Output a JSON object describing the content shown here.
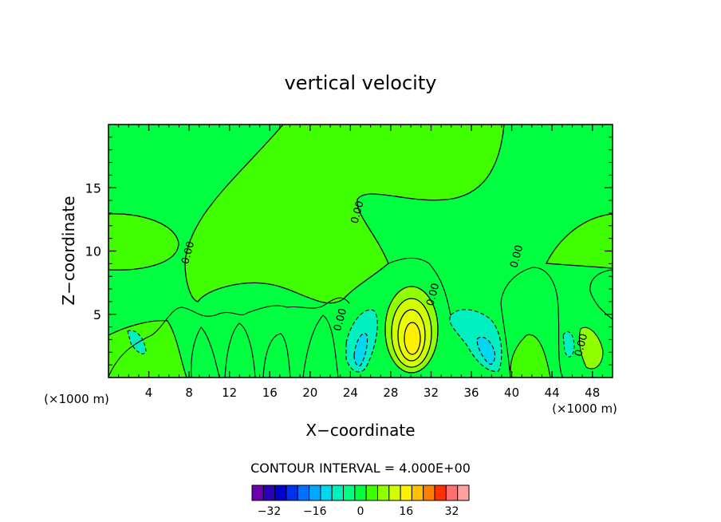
{
  "chart_data": {
    "type": "heatmap",
    "title": "vertical velocity",
    "xlabel": "X−coordinate",
    "ylabel": "Z−coordinate",
    "x_unit_left": "(×1000 m)",
    "x_unit_right": "(×1000 m)",
    "xlim": [
      0,
      50
    ],
    "ylim": [
      0,
      20
    ],
    "xticks": [
      4,
      8,
      12,
      16,
      20,
      24,
      28,
      32,
      36,
      40,
      44,
      48
    ],
    "yticks": [
      5,
      10,
      15
    ],
    "contour_interval_text": "CONTOUR INTERVAL = 4.000E+00",
    "contour_labels": [
      {
        "text": "0.00",
        "x": 8.2,
        "z": 9.8
      },
      {
        "text": "0.00",
        "x": 25.0,
        "z": 13.0
      },
      {
        "text": "0.00",
        "x": 32.5,
        "z": 6.5
      },
      {
        "text": "0.00",
        "x": 40.8,
        "z": 9.5
      },
      {
        "text": "0.00",
        "x": 23.3,
        "z": 4.5
      },
      {
        "text": "0.00",
        "x": 47.2,
        "z": 2.5
      }
    ],
    "colorbar": {
      "levels": [
        -36,
        -32,
        -28,
        -24,
        -20,
        -16,
        -12,
        -8,
        -4,
        0,
        4,
        8,
        12,
        16,
        20,
        24,
        28,
        32,
        36
      ],
      "colors": [
        "#6a00b0",
        "#2a00b8",
        "#0000d0",
        "#0030f0",
        "#0070ff",
        "#00a8ff",
        "#00d8f0",
        "#00f0c0",
        "#00ff80",
        "#00ff40",
        "#40ff00",
        "#90ff00",
        "#d0ff00",
        "#fff000",
        "#ffc000",
        "#ff8000",
        "#ff3000",
        "#ff7070",
        "#ffa0a0"
      ],
      "tick_labels": [
        "−32",
        "−16",
        "0",
        "16",
        "32"
      ],
      "tick_values": [
        -32,
        -16,
        0,
        16,
        32
      ]
    },
    "features": [
      {
        "name": "updraft core",
        "x": 30,
        "z": 3.5,
        "max_value": 16
      },
      {
        "name": "downdraft left",
        "x": 25.5,
        "z": 3.5,
        "min_value": -8
      },
      {
        "name": "downdraft right",
        "x": 36.5,
        "z": 3,
        "min_value": -8
      }
    ]
  }
}
